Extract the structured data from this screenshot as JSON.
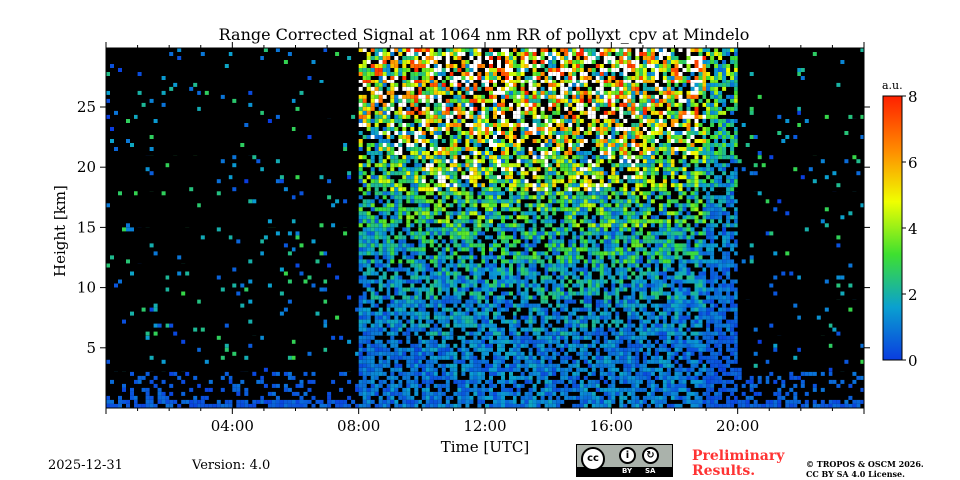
{
  "chart_data": {
    "type": "heatmap",
    "title": "Range Corrected Signal at 1064 nm RR of pollyxt_cpv at Mindelo",
    "xlabel": "Time [UTC]",
    "ylabel": "Height [km]",
    "xlim": [
      0,
      24
    ],
    "ylim": [
      0,
      29.9
    ],
    "x_ticks": [
      4,
      8,
      12,
      16,
      20
    ],
    "x_tick_labels": [
      "04:00",
      "08:00",
      "12:00",
      "16:00",
      "20:00"
    ],
    "y_ticks": [
      5,
      10,
      15,
      20,
      25
    ],
    "y_tick_labels": [
      "5",
      "10",
      "15",
      "20",
      "25"
    ],
    "x_bins_hours": [
      0,
      1,
      2,
      3,
      4,
      5,
      6,
      7,
      8,
      9,
      10,
      11,
      12,
      13,
      14,
      15,
      16,
      17,
      18,
      19,
      20,
      21,
      22,
      23
    ],
    "y_bins_km": [
      0,
      3,
      6,
      9,
      12,
      15,
      18,
      21,
      24,
      27
    ],
    "z_mean_by_hour": [
      [
        0.5,
        0.05,
        0.05,
        0.05,
        0.05,
        0.05,
        0.05,
        0.05,
        0.05,
        0.05
      ],
      [
        0.5,
        0.05,
        0.05,
        0.05,
        0.05,
        0.05,
        0.05,
        0.05,
        0.05,
        0.05
      ],
      [
        0.5,
        0.05,
        0.05,
        0.05,
        0.05,
        0.05,
        0.05,
        0.05,
        0.05,
        0.05
      ],
      [
        0.5,
        0.05,
        0.05,
        0.05,
        0.05,
        0.05,
        0.05,
        0.05,
        0.05,
        0.05
      ],
      [
        0.5,
        0.05,
        0.05,
        0.05,
        0.05,
        0.05,
        0.05,
        0.05,
        0.05,
        0.05
      ],
      [
        0.5,
        0.05,
        0.05,
        0.05,
        0.05,
        0.05,
        0.05,
        0.05,
        0.05,
        0.05
      ],
      [
        0.5,
        0.05,
        0.05,
        0.05,
        0.05,
        0.05,
        0.05,
        0.05,
        0.05,
        0.05
      ],
      [
        0.5,
        0.05,
        0.05,
        0.05,
        0.05,
        0.05,
        0.05,
        0.05,
        0.05,
        0.05
      ],
      [
        0.8,
        0.8,
        1.0,
        1.3,
        1.6,
        2.0,
        2.6,
        3.2,
        4.0,
        4.4
      ],
      [
        0.9,
        0.9,
        1.2,
        1.4,
        1.8,
        2.3,
        2.9,
        3.6,
        4.5,
        5.0
      ],
      [
        1.0,
        1.0,
        1.3,
        1.6,
        2.0,
        2.5,
        3.2,
        4.0,
        5.0,
        5.5
      ],
      [
        1.0,
        1.0,
        1.3,
        1.6,
        2.0,
        2.5,
        3.2,
        4.0,
        5.0,
        5.5
      ],
      [
        1.0,
        1.0,
        1.3,
        1.6,
        2.0,
        2.5,
        3.2,
        4.0,
        5.0,
        5.5
      ],
      [
        1.0,
        1.0,
        1.3,
        1.6,
        2.0,
        2.5,
        3.2,
        4.0,
        5.0,
        5.5
      ],
      [
        1.0,
        1.0,
        1.3,
        1.6,
        2.0,
        2.5,
        3.2,
        4.0,
        5.0,
        5.5
      ],
      [
        1.0,
        1.0,
        1.3,
        1.6,
        2.0,
        2.5,
        3.2,
        4.0,
        5.0,
        5.5
      ],
      [
        1.0,
        1.0,
        1.3,
        1.6,
        2.0,
        2.5,
        3.2,
        4.0,
        5.0,
        5.5
      ],
      [
        1.0,
        1.0,
        1.2,
        1.5,
        1.9,
        2.4,
        3.0,
        3.8,
        4.8,
        5.2
      ],
      [
        0.9,
        0.9,
        1.2,
        1.4,
        1.8,
        2.3,
        2.9,
        3.6,
        4.5,
        5.0
      ],
      [
        0.5,
        0.5,
        0.7,
        0.8,
        1.0,
        1.3,
        1.6,
        2.0,
        2.5,
        2.8
      ],
      [
        0.5,
        0.05,
        0.05,
        0.05,
        0.05,
        0.05,
        0.05,
        0.05,
        0.05,
        0.05
      ],
      [
        0.5,
        0.05,
        0.05,
        0.05,
        0.05,
        0.05,
        0.05,
        0.05,
        0.05,
        0.05
      ],
      [
        0.5,
        0.05,
        0.05,
        0.05,
        0.05,
        0.05,
        0.05,
        0.05,
        0.05,
        0.05
      ],
      [
        0.5,
        0.05,
        0.05,
        0.05,
        0.05,
        0.05,
        0.05,
        0.05,
        0.05,
        0.05
      ]
    ],
    "colorbar": {
      "label": "a.u.",
      "range": [
        0,
        8
      ],
      "ticks": [
        0,
        2,
        4,
        6,
        8
      ],
      "tick_labels": [
        "0",
        "2",
        "4",
        "6",
        "8"
      ],
      "colors": [
        "#0a3ce0",
        "#0aa0d0",
        "#3ee030",
        "#f0ff00",
        "#ff8800",
        "#ff2000"
      ]
    }
  },
  "footer": {
    "date": "2025-12-31",
    "version": "Version: 4.0",
    "license_badge": {
      "cc": "cc",
      "by": "BY",
      "sa": "SA"
    },
    "preliminary": "Preliminary Results.",
    "copyright": "© TROPOS & OSCM 2026.",
    "license": "CC BY SA 4.0 License."
  }
}
